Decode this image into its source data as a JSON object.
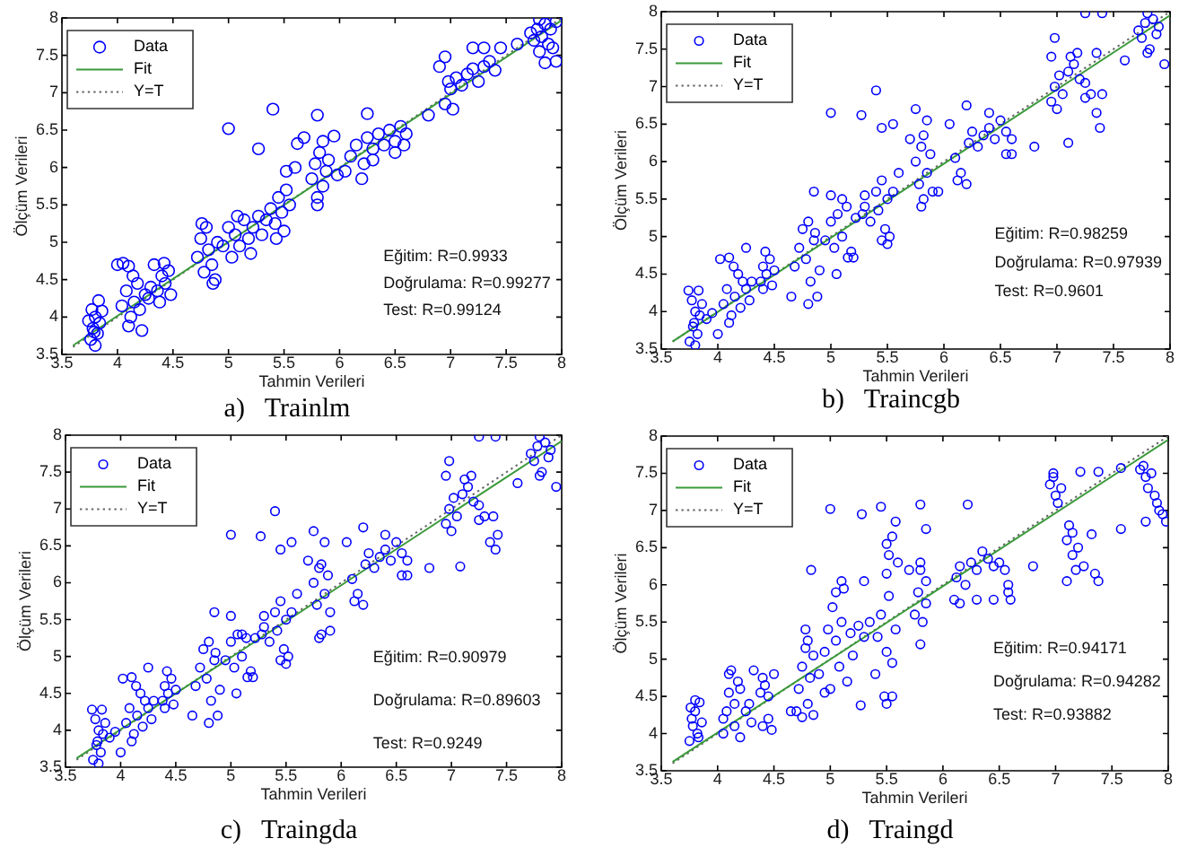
{
  "chart_data": [
    {
      "type": "scatter",
      "title": "a)   Trainlm",
      "xlabel": "Tahmin Verileri",
      "ylabel": "Ölçüm Verileri",
      "xlim": [
        3.5,
        8
      ],
      "ylim": [
        3.5,
        8
      ],
      "xticks": [
        3.5,
        4,
        4.5,
        5,
        5.5,
        6,
        6.5,
        7,
        7.5,
        8
      ],
      "yticks": [
        3.5,
        4,
        4.5,
        5,
        5.5,
        6,
        6.5,
        7,
        7.5,
        8
      ],
      "legend": "top left",
      "marker": "circle",
      "annotations": [
        "Eğitim: R=0.9933",
        "Doğrulama: R=0.99277",
        "Test: R=0.99124"
      ],
      "series": [
        {
          "name": "Data",
          "type": "scatter",
          "color": "#0000ff",
          "x": [
            3.76,
            3.78,
            3.8,
            3.82,
            3.84,
            3.77,
            3.83,
            3.8,
            3.74,
            3.86,
            3.79,
            4.0,
            4.05,
            4.1,
            4.04,
            4.08,
            4.12,
            4.15,
            4.18,
            4.2,
            4.22,
            4.25,
            4.28,
            4.1,
            4.3,
            4.14,
            4.33,
            4.36,
            4.4,
            4.43,
            4.42,
            4.46,
            4.48,
            4.38,
            4.72,
            4.75,
            4.78,
            4.8,
            4.82,
            4.85,
            4.88,
            4.76,
            4.9,
            4.86,
            4.95,
            5.0,
            5.03,
            5.06,
            5.1,
            5.14,
            5.18,
            5.2,
            5.08,
            5.0,
            5.22,
            5.27,
            5.3,
            5.34,
            5.38,
            5.42,
            5.45,
            5.48,
            5.52,
            5.55,
            5.5,
            5.43,
            5.27,
            5.4,
            5.52,
            5.75,
            5.78,
            5.8,
            5.82,
            5.85,
            5.88,
            5.8,
            5.9,
            5.8,
            5.62,
            5.68,
            5.95,
            5.85,
            5.6,
            5.98,
            6.1,
            6.15,
            6.2,
            6.22,
            6.25,
            6.3,
            6.35,
            6.4,
            6.45,
            6.5,
            6.55,
            6.6,
            6.5,
            6.25,
            6.05,
            6.58,
            6.3,
            6.95,
            7.0,
            7.02,
            7.05,
            6.98,
            6.9,
            6.95,
            6.8,
            7.1,
            7.15,
            7.2,
            7.25,
            7.3,
            7.35,
            7.3,
            7.45,
            7.4,
            7.2,
            7.75,
            7.78,
            7.8,
            7.82,
            7.85,
            7.88,
            7.9,
            7.8,
            7.92,
            7.95,
            7.6,
            7.85,
            7.72,
            7.95
          ],
          "values": [
            3.7,
            3.85,
            4.0,
            3.78,
            3.92,
            4.1,
            4.22,
            3.62,
            3.95,
            4.08,
            3.8,
            4.7,
            4.72,
            4.68,
            4.15,
            4.35,
            4.0,
            4.2,
            4.45,
            4.1,
            3.82,
            4.3,
            4.25,
            3.88,
            4.4,
            4.55,
            4.7,
            4.35,
            4.55,
            4.45,
            4.72,
            4.62,
            4.3,
            4.2,
            4.8,
            5.05,
            4.6,
            5.2,
            4.9,
            4.7,
            4.5,
            5.25,
            5.0,
            4.45,
            4.95,
            5.2,
            4.8,
            5.1,
            4.95,
            5.3,
            5.05,
            4.85,
            5.35,
            6.52,
            5.2,
            5.35,
            5.1,
            5.3,
            5.45,
            5.25,
            5.6,
            5.4,
            5.7,
            5.5,
            5.15,
            5.05,
            6.25,
            6.78,
            5.95,
            5.85,
            6.05,
            5.6,
            6.2,
            5.75,
            5.95,
            5.5,
            6.1,
            6.7,
            6.32,
            6.4,
            6.42,
            6.35,
            6.0,
            5.9,
            6.15,
            6.3,
            5.85,
            6.05,
            6.4,
            6.25,
            6.45,
            6.3,
            6.5,
            6.35,
            6.55,
            6.45,
            6.2,
            6.72,
            5.95,
            6.3,
            6.1,
            6.85,
            7.05,
            6.78,
            7.2,
            7.15,
            7.35,
            7.48,
            6.7,
            7.1,
            7.25,
            7.32,
            7.15,
            7.35,
            7.42,
            7.6,
            7.6,
            7.3,
            7.6,
            7.7,
            7.85,
            7.98,
            7.75,
            7.92,
            7.65,
            7.85,
            7.55,
            7.6,
            7.42,
            7.65,
            7.4,
            7.8,
            7.95
          ]
        },
        {
          "name": "Fit",
          "type": "line",
          "color": "#3a9a3a",
          "marker": "none",
          "line_style": "solid",
          "x": [
            3.6,
            8
          ],
          "values": [
            3.62,
            7.97
          ]
        },
        {
          "name": "Y=T",
          "type": "line",
          "color": "#666666",
          "marker": "none",
          "line_style": "dotted",
          "x": [
            3.6,
            8
          ],
          "values": [
            3.6,
            8
          ]
        }
      ]
    },
    {
      "type": "scatter",
      "title": "b)   Traincgb",
      "xlabel": "Tahmin Verileri",
      "ylabel": "Ölçüm Verileri",
      "xlim": [
        3.5,
        8
      ],
      "ylim": [
        3.5,
        8
      ],
      "xticks": [
        3.5,
        4,
        4.5,
        5,
        5.5,
        6,
        6.5,
        7,
        7.5,
        8
      ],
      "yticks": [
        3.5,
        4,
        4.5,
        5,
        5.5,
        6,
        6.5,
        7,
        7.5,
        8
      ],
      "legend": "top left",
      "marker": "circle",
      "annotations": [
        "Eğitim: R=0.98259",
        "Doğrulama: R=0.97939",
        "Test: R=0.9601"
      ],
      "series": [
        {
          "name": "Data",
          "type": "scatter",
          "color": "#0000ff",
          "x": [
            3.75,
            3.78,
            3.8,
            3.82,
            3.84,
            3.77,
            3.83,
            3.8,
            3.74,
            3.86,
            3.9,
            3.79,
            4.0,
            4.02,
            4.1,
            4.05,
            4.08,
            4.12,
            4.15,
            4.18,
            4.2,
            4.22,
            4.25,
            4.28,
            4.1,
            4.3,
            4.14,
            4.25,
            3.95,
            4.38,
            4.4,
            4.43,
            4.42,
            4.46,
            4.48,
            4.4,
            4.5,
            4.65,
            4.68,
            4.72,
            4.75,
            4.78,
            4.8,
            4.82,
            4.85,
            4.88,
            4.8,
            4.9,
            4.86,
            4.85,
            4.95,
            5.0,
            5.03,
            5.06,
            5.1,
            5.14,
            5.18,
            5.2,
            5.05,
            5.1,
            5.0,
            5.0,
            5.15,
            5.22,
            5.28,
            5.3,
            5.35,
            5.4,
            5.42,
            5.45,
            5.48,
            5.5,
            5.52,
            5.55,
            5.45,
            5.5,
            5.27,
            5.4,
            5.45,
            5.55,
            5.6,
            5.3,
            5.75,
            5.78,
            5.8,
            5.82,
            5.85,
            5.88,
            5.8,
            5.9,
            5.75,
            5.85,
            5.7,
            5.95,
            5.82,
            6.1,
            6.15,
            6.2,
            6.22,
            6.25,
            6.3,
            6.35,
            6.4,
            6.45,
            6.5,
            6.55,
            6.6,
            6.55,
            6.6,
            6.2,
            6.05,
            6.4,
            6.12,
            6.8,
            6.95,
            6.98,
            7.0,
            7.02,
            6.95,
            6.98,
            7.05,
            7.1,
            7.12,
            7.15,
            7.2,
            7.18,
            7.1,
            7.25,
            7.3,
            7.35,
            7.38,
            7.4,
            7.35,
            7.25,
            7.75,
            7.78,
            7.8,
            7.82,
            7.85,
            7.88,
            7.9,
            7.8,
            7.25,
            7.4,
            7.6,
            7.95,
            7.72
          ],
          "values": [
            3.6,
            3.8,
            4.0,
            3.7,
            3.95,
            4.15,
            4.28,
            3.55,
            4.28,
            4.1,
            3.9,
            3.85,
            3.7,
            4.7,
            4.72,
            4.1,
            4.3,
            3.95,
            4.2,
            4.5,
            4.05,
            4.4,
            4.3,
            4.15,
            3.85,
            4.4,
            4.6,
            4.85,
            3.98,
            4.4,
            4.6,
            4.5,
            4.8,
            4.7,
            4.35,
            4.3,
            4.55,
            4.2,
            4.6,
            4.85,
            5.1,
            4.7,
            5.2,
            4.4,
            4.95,
            4.2,
            4.1,
            4.55,
            5.05,
            5.6,
            4.95,
            5.2,
            4.85,
            5.3,
            5.0,
            5.4,
            4.8,
            4.72,
            4.5,
            5.5,
            5.55,
            6.65,
            4.72,
            5.25,
            5.3,
            5.4,
            5.2,
            5.6,
            5.35,
            5.75,
            5.1,
            5.5,
            5.0,
            5.6,
            4.95,
            4.9,
            6.62,
            6.95,
            6.45,
            6.5,
            5.85,
            5.55,
            6.0,
            5.7,
            6.2,
            5.5,
            5.85,
            6.1,
            5.4,
            5.6,
            6.7,
            6.55,
            6.3,
            5.6,
            6.35,
            6.05,
            5.85,
            5.7,
            6.25,
            6.4,
            6.2,
            6.35,
            6.45,
            6.3,
            6.55,
            6.4,
            6.3,
            6.1,
            6.1,
            6.75,
            6.5,
            6.65,
            5.75,
            6.2,
            6.8,
            7.0,
            6.7,
            7.15,
            7.4,
            7.65,
            6.9,
            7.2,
            7.4,
            7.3,
            7.1,
            7.45,
            6.25,
            6.85,
            6.9,
            6.65,
            6.45,
            6.9,
            7.45,
            7.05,
            7.65,
            7.85,
            7.98,
            7.5,
            7.9,
            7.7,
            7.8,
            7.45,
            7.98,
            7.98,
            7.35,
            7.3,
            7.75
          ]
        },
        {
          "name": "Fit",
          "type": "line",
          "color": "#3a9a3a",
          "marker": "none",
          "line_style": "solid",
          "x": [
            3.6,
            8
          ],
          "values": [
            3.6,
            7.95
          ]
        },
        {
          "name": "Y=T",
          "type": "line",
          "color": "#666666",
          "marker": "none",
          "line_style": "dotted",
          "x": [
            3.6,
            8
          ],
          "values": [
            3.6,
            8
          ]
        }
      ]
    },
    {
      "type": "scatter",
      "title": "c)   Traingda",
      "xlabel": "Tahmin Verileri",
      "ylabel": "Ölçüm Verileri",
      "xlim": [
        3.5,
        8
      ],
      "ylim": [
        3.5,
        8
      ],
      "xticks": [
        3.5,
        4,
        4.5,
        5,
        5.5,
        6,
        6.5,
        7,
        7.5,
        8
      ],
      "yticks": [
        3.5,
        4,
        4.5,
        5,
        5.5,
        6,
        6.5,
        7,
        7.5,
        8
      ],
      "legend": "top left",
      "marker": "circle",
      "annotations": [
        "Eğitim: R=0.90979",
        "Doğrulama: R=0.89603",
        "Test: R=0.9249"
      ],
      "series": [
        {
          "name": "Data",
          "type": "scatter",
          "color": "#0000ff",
          "x": [
            3.75,
            3.78,
            3.8,
            3.82,
            3.84,
            3.77,
            3.83,
            3.8,
            3.74,
            3.86,
            3.9,
            3.79,
            4.0,
            4.02,
            4.1,
            4.05,
            4.08,
            4.12,
            4.15,
            4.18,
            4.2,
            4.22,
            4.25,
            4.28,
            4.1,
            4.3,
            4.14,
            4.25,
            3.95,
            4.38,
            4.4,
            4.43,
            4.42,
            4.46,
            4.48,
            4.4,
            4.5,
            4.65,
            4.68,
            4.72,
            4.75,
            4.78,
            4.8,
            4.82,
            4.85,
            4.88,
            4.8,
            4.9,
            4.86,
            4.85,
            4.95,
            5.0,
            5.03,
            5.06,
            5.1,
            5.14,
            5.18,
            5.2,
            5.05,
            5.1,
            5.0,
            5.0,
            5.15,
            5.22,
            5.28,
            5.3,
            5.35,
            5.4,
            5.42,
            5.45,
            5.48,
            5.5,
            5.52,
            5.55,
            5.45,
            5.5,
            5.27,
            5.4,
            5.45,
            5.55,
            5.6,
            5.3,
            5.75,
            5.78,
            5.8,
            5.82,
            5.85,
            5.88,
            5.8,
            5.9,
            5.75,
            5.85,
            5.7,
            5.9,
            5.82,
            6.1,
            6.15,
            6.2,
            6.22,
            6.25,
            6.3,
            6.35,
            6.4,
            6.45,
            6.5,
            6.55,
            6.6,
            6.55,
            6.6,
            6.2,
            6.05,
            6.4,
            6.12,
            6.8,
            6.95,
            6.98,
            7.0,
            7.02,
            6.95,
            6.98,
            7.05,
            7.1,
            7.12,
            7.15,
            7.2,
            7.18,
            7.08,
            7.25,
            7.3,
            7.35,
            7.4,
            7.42,
            7.38,
            7.25,
            7.75,
            7.78,
            7.8,
            7.82,
            7.85,
            7.88,
            7.9,
            7.8,
            7.25,
            7.4,
            7.6,
            7.95,
            7.72
          ],
          "values": [
            3.6,
            3.8,
            4.0,
            3.7,
            3.95,
            4.15,
            4.28,
            3.55,
            4.28,
            4.1,
            3.9,
            3.85,
            3.7,
            4.7,
            4.72,
            4.1,
            4.3,
            3.95,
            4.2,
            4.5,
            4.05,
            4.4,
            4.3,
            4.15,
            3.85,
            4.4,
            4.6,
            4.85,
            3.98,
            4.4,
            4.6,
            4.5,
            4.8,
            4.7,
            4.35,
            4.3,
            4.55,
            4.2,
            4.6,
            4.85,
            5.1,
            4.7,
            5.2,
            4.4,
            4.95,
            4.2,
            4.1,
            4.55,
            5.05,
            5.6,
            4.95,
            5.2,
            4.85,
            5.3,
            5.0,
            5.25,
            4.8,
            4.72,
            4.5,
            5.3,
            5.55,
            6.65,
            4.72,
            5.25,
            5.3,
            5.4,
            5.2,
            5.6,
            5.35,
            5.75,
            5.1,
            5.5,
            5.0,
            5.6,
            4.95,
            4.9,
            6.63,
            6.97,
            6.45,
            6.55,
            5.85,
            5.55,
            6.0,
            5.7,
            6.2,
            5.3,
            5.85,
            6.1,
            5.25,
            5.6,
            6.7,
            6.55,
            6.3,
            5.35,
            6.25,
            6.05,
            5.85,
            5.7,
            6.25,
            6.4,
            6.2,
            6.35,
            6.45,
            6.3,
            6.55,
            6.4,
            6.3,
            6.1,
            6.1,
            6.75,
            6.55,
            6.65,
            5.75,
            6.2,
            6.8,
            7.0,
            6.7,
            7.15,
            7.45,
            7.65,
            6.9,
            7.2,
            7.4,
            7.3,
            7.1,
            7.45,
            6.22,
            6.85,
            6.9,
            6.55,
            6.45,
            6.65,
            6.9,
            7.05,
            7.65,
            7.85,
            7.98,
            7.5,
            7.9,
            7.7,
            7.8,
            7.45,
            7.98,
            7.98,
            7.35,
            7.3,
            7.75
          ]
        },
        {
          "name": "Fit",
          "type": "line",
          "color": "#3a9a3a",
          "marker": "none",
          "line_style": "solid",
          "x": [
            3.6,
            8
          ],
          "values": [
            3.62,
            7.92
          ]
        },
        {
          "name": "Y=T",
          "type": "line",
          "color": "#666666",
          "marker": "none",
          "line_style": "dotted",
          "x": [
            3.6,
            8
          ],
          "values": [
            3.6,
            8
          ]
        }
      ]
    },
    {
      "type": "scatter",
      "title": "d)   Traingd",
      "xlabel": "Tahmin Verileri",
      "ylabel": "Ölçüm Verileri",
      "xlim": [
        3.5,
        8
      ],
      "ylim": [
        3.5,
        8
      ],
      "xticks": [
        3.5,
        4,
        4.5,
        5,
        5.5,
        6,
        6.5,
        7,
        7.5,
        8
      ],
      "yticks": [
        3.5,
        4,
        4.5,
        5,
        5.5,
        6,
        6.5,
        7,
        7.5,
        8
      ],
      "legend": "top left",
      "marker": "circle",
      "annotations": [
        "Eğitim: R=0.94171",
        "Doğrulama: R=0.94282",
        "Test: R=0.93882"
      ],
      "series": [
        {
          "name": "Data",
          "type": "scatter",
          "color": "#0000ff",
          "x": [
            3.75,
            3.78,
            3.8,
            3.82,
            3.84,
            3.77,
            3.83,
            3.8,
            3.86,
            3.76,
            4.05,
            4.08,
            4.1,
            4.12,
            4.15,
            4.18,
            4.2,
            4.1,
            4.15,
            4.2,
            4.05,
            4.25,
            4.28,
            4.3,
            4.32,
            4.38,
            4.4,
            4.42,
            4.45,
            4.4,
            4.45,
            4.48,
            4.5,
            4.7,
            4.72,
            4.75,
            4.78,
            4.8,
            4.82,
            4.85,
            4.75,
            4.85,
            4.8,
            4.65,
            4.83,
            4.78,
            4.9,
            4.95,
            4.98,
            5.0,
            5.02,
            5.05,
            5.08,
            5.1,
            5.12,
            5.15,
            5.18,
            5.2,
            5.05,
            4.95,
            5.0,
            5.1,
            5.25,
            5.3,
            5.27,
            5.28,
            5.3,
            5.35,
            5.4,
            5.42,
            5.45,
            5.48,
            5.5,
            5.52,
            5.55,
            5.58,
            5.5,
            5.45,
            5.55,
            5.5,
            5.52,
            5.55,
            5.58,
            5.6,
            5.5,
            5.75,
            5.78,
            5.8,
            5.82,
            5.85,
            5.8,
            5.85,
            5.8,
            5.8,
            5.85,
            5.7,
            6.1,
            6.12,
            6.15,
            6.2,
            6.25,
            6.3,
            6.35,
            6.4,
            6.45,
            6.5,
            6.22,
            6.15,
            6.3,
            6.45,
            6.55,
            6.58,
            6.6,
            6.58,
            6.8,
            6.95,
            6.98,
            7.0,
            7.02,
            7.05,
            6.98,
            7.1,
            7.12,
            7.15,
            7.18,
            7.1,
            7.2,
            7.15,
            7.25,
            7.32,
            7.38,
            7.35,
            7.75,
            7.78,
            7.8,
            7.82,
            7.85,
            7.88,
            7.9,
            7.95,
            7.98,
            7.92,
            7.58,
            7.58,
            7.22,
            7.38,
            7.8
          ],
          "values": [
            3.9,
            4.1,
            4.3,
            4.0,
            4.42,
            4.2,
            3.95,
            4.45,
            4.15,
            4.35,
            4.0,
            4.3,
            4.55,
            4.85,
            4.1,
            4.7,
            3.95,
            4.8,
            4.4,
            4.6,
            4.2,
            4.3,
            4.4,
            4.15,
            4.85,
            4.55,
            4.75,
            4.65,
            4.5,
            4.1,
            4.2,
            4.05,
            4.8,
            4.3,
            4.6,
            4.9,
            5.15,
            4.4,
            4.75,
            5.05,
            4.22,
            4.25,
            5.25,
            4.3,
            6.2,
            5.4,
            4.8,
            5.1,
            5.4,
            4.6,
            5.7,
            5.25,
            4.9,
            5.5,
            5.95,
            4.7,
            5.35,
            5.05,
            5.9,
            4.55,
            7.02,
            6.05,
            5.45,
            5.3,
            4.38,
            6.95,
            6.05,
            5.5,
            4.8,
            5.3,
            5.6,
            4.5,
            5.1,
            5.85,
            4.95,
            5.4,
            4.4,
            7.05,
            4.5,
            6.15,
            6.4,
            6.65,
            6.85,
            6.3,
            6.55,
            5.6,
            5.9,
            6.2,
            5.5,
            5.75,
            6.3,
            6.05,
            5.2,
            7.08,
            6.75,
            6.2,
            5.8,
            6.1,
            6.25,
            6.0,
            6.3,
            6.2,
            6.45,
            6.35,
            6.25,
            6.3,
            7.08,
            5.75,
            5.8,
            5.8,
            6.2,
            6.0,
            5.8,
            5.9,
            6.25,
            7.35,
            7.45,
            7.2,
            7.1,
            7.3,
            7.5,
            6.6,
            6.8,
            6.4,
            6.2,
            6.05,
            6.5,
            6.7,
            6.25,
            6.68,
            6.05,
            6.15,
            7.55,
            7.6,
            7.45,
            7.3,
            7.5,
            7.2,
            7.1,
            6.95,
            6.85,
            7.0,
            7.57,
            6.75,
            7.52,
            7.52,
            6.85
          ]
        },
        {
          "name": "Fit",
          "type": "line",
          "color": "#3a9a3a",
          "marker": "none",
          "line_style": "solid",
          "x": [
            3.6,
            8
          ],
          "values": [
            3.62,
            7.95
          ]
        },
        {
          "name": "Y=T",
          "type": "line",
          "color": "#666666",
          "marker": "none",
          "line_style": "dotted",
          "x": [
            3.6,
            8
          ],
          "values": [
            3.6,
            8
          ]
        }
      ]
    }
  ]
}
